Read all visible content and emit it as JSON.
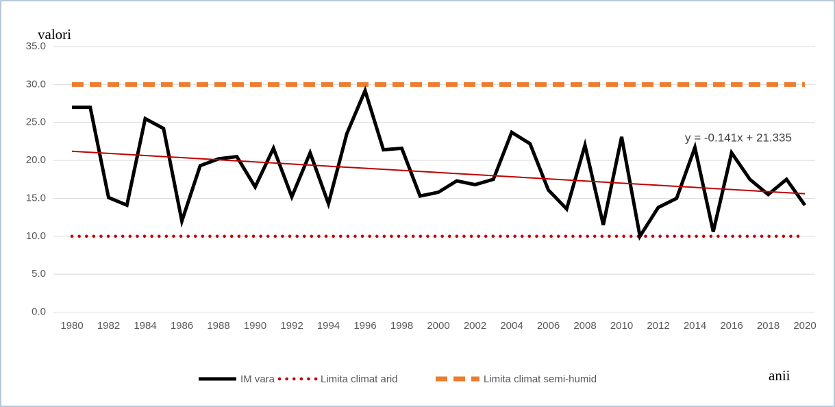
{
  "chart_data": {
    "type": "line",
    "y_label": "valori",
    "x_label": "anii",
    "annotation": "y = -0.141x + 21.335",
    "x": [
      1980,
      1981,
      1982,
      1983,
      1984,
      1985,
      1986,
      1987,
      1988,
      1989,
      1990,
      1991,
      1992,
      1993,
      1994,
      1995,
      1996,
      1997,
      1998,
      1999,
      2000,
      2001,
      2002,
      2003,
      2004,
      2005,
      2006,
      2007,
      2008,
      2009,
      2010,
      2011,
      2012,
      2013,
      2014,
      2015,
      2016,
      2017,
      2018,
      2019,
      2020
    ],
    "xlim": [
      1980,
      2020
    ],
    "xticks": [
      1980,
      1982,
      1984,
      1986,
      1988,
      1990,
      1992,
      1994,
      1996,
      1998,
      2000,
      2002,
      2004,
      2006,
      2008,
      2010,
      2012,
      2014,
      2016,
      2018,
      2020
    ],
    "ylim": [
      0,
      35
    ],
    "yticks": [
      {
        "value": 0,
        "label": "0.0"
      },
      {
        "value": 5,
        "label": "5.0"
      },
      {
        "value": 10,
        "label": "10.0"
      },
      {
        "value": 15,
        "label": "15.0"
      },
      {
        "value": 20,
        "label": "20.0"
      },
      {
        "value": 25,
        "label": "25.0"
      },
      {
        "value": 30,
        "label": "30.0"
      },
      {
        "value": 35,
        "label": "35.0"
      }
    ],
    "grid": true,
    "legend": "bottom",
    "series": [
      {
        "name": "IM vara",
        "color": "#000000",
        "style": "solid",
        "values": [
          27.0,
          27.0,
          15.1,
          14.1,
          25.5,
          24.2,
          12.0,
          19.3,
          20.2,
          20.5,
          16.5,
          21.6,
          15.2,
          21.0,
          14.3,
          23.5,
          29.2,
          21.4,
          21.6,
          15.3,
          15.8,
          17.3,
          16.8,
          17.5,
          23.7,
          22.2,
          16.1,
          13.6,
          22.0,
          11.5,
          23.1,
          10.0,
          13.8,
          15.0,
          21.7,
          10.6,
          21.0,
          17.5,
          15.5,
          17.5,
          14.1
        ]
      },
      {
        "name": "Limita climat arid",
        "color": "#c00000",
        "style": "dotted",
        "values": [
          10,
          10,
          10,
          10,
          10,
          10,
          10,
          10,
          10,
          10,
          10,
          10,
          10,
          10,
          10,
          10,
          10,
          10,
          10,
          10,
          10,
          10,
          10,
          10,
          10,
          10,
          10,
          10,
          10,
          10,
          10,
          10,
          10,
          10,
          10,
          10,
          10,
          10,
          10,
          10,
          10
        ]
      },
      {
        "name": "Limita climat semi-humid",
        "color": "#ed7d31",
        "style": "dashed",
        "values": [
          30,
          30,
          30,
          30,
          30,
          30,
          30,
          30,
          30,
          30,
          30,
          30,
          30,
          30,
          30,
          30,
          30,
          30,
          30,
          30,
          30,
          30,
          30,
          30,
          30,
          30,
          30,
          30,
          30,
          30,
          30,
          30,
          30,
          30,
          30,
          30,
          30,
          30,
          30,
          30,
          30
        ]
      }
    ],
    "trendline": {
      "color": "#c00000",
      "x": [
        1980,
        2020
      ],
      "values": [
        21.2,
        15.6
      ]
    }
  }
}
